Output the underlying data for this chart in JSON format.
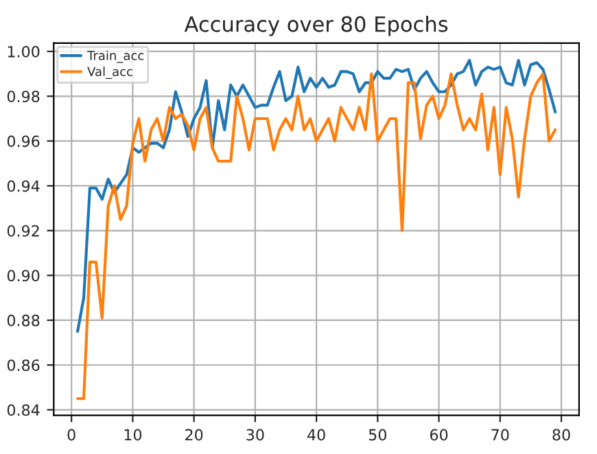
{
  "chart_data": {
    "type": "line",
    "title": "Accuracy over 80 Epochs",
    "x": [
      1,
      2,
      3,
      4,
      5,
      6,
      7,
      8,
      9,
      10,
      11,
      12,
      13,
      14,
      15,
      16,
      17,
      18,
      19,
      20,
      21,
      22,
      23,
      24,
      25,
      26,
      27,
      28,
      29,
      30,
      31,
      32,
      33,
      34,
      35,
      36,
      37,
      38,
      39,
      40,
      41,
      42,
      43,
      44,
      45,
      46,
      47,
      48,
      49,
      50,
      51,
      52,
      53,
      54,
      55,
      56,
      57,
      58,
      59,
      60,
      61,
      62,
      63,
      64,
      65,
      66,
      67,
      68,
      69,
      70,
      71,
      72,
      73,
      74,
      75,
      76,
      77,
      78,
      79
    ],
    "series": [
      {
        "name": "Train_acc",
        "color": "#1f77b4",
        "values": [
          0.875,
          0.89,
          0.939,
          0.939,
          0.934,
          0.943,
          0.937,
          0.941,
          0.945,
          0.957,
          0.955,
          0.957,
          0.959,
          0.959,
          0.957,
          0.965,
          0.982,
          0.973,
          0.962,
          0.97,
          0.975,
          0.987,
          0.957,
          0.978,
          0.965,
          0.985,
          0.98,
          0.985,
          0.98,
          0.975,
          0.976,
          0.976,
          0.984,
          0.991,
          0.978,
          0.98,
          0.993,
          0.982,
          0.988,
          0.984,
          0.988,
          0.984,
          0.985,
          0.991,
          0.991,
          0.99,
          0.982,
          0.986,
          0.986,
          0.991,
          0.988,
          0.988,
          0.992,
          0.991,
          0.992,
          0.983,
          0.988,
          0.991,
          0.986,
          0.982,
          0.982,
          0.985,
          0.99,
          0.991,
          0.996,
          0.985,
          0.991,
          0.993,
          0.992,
          0.993,
          0.986,
          0.985,
          0.996,
          0.985,
          0.994,
          0.995,
          0.992,
          0.983,
          0.973
        ]
      },
      {
        "name": "Val_acc",
        "color": "#ff7f0e",
        "values": [
          0.845,
          0.845,
          0.906,
          0.906,
          0.881,
          0.931,
          0.94,
          0.925,
          0.931,
          0.959,
          0.97,
          0.951,
          0.965,
          0.97,
          0.96,
          0.975,
          0.97,
          0.972,
          0.967,
          0.956,
          0.97,
          0.975,
          0.957,
          0.951,
          0.951,
          0.951,
          0.98,
          0.97,
          0.956,
          0.97,
          0.97,
          0.97,
          0.956,
          0.965,
          0.97,
          0.965,
          0.98,
          0.965,
          0.97,
          0.96,
          0.965,
          0.97,
          0.96,
          0.975,
          0.97,
          0.965,
          0.975,
          0.965,
          0.99,
          0.96,
          0.965,
          0.97,
          0.97,
          0.92,
          0.986,
          0.986,
          0.961,
          0.976,
          0.98,
          0.97,
          0.976,
          0.99,
          0.976,
          0.965,
          0.97,
          0.965,
          0.981,
          0.956,
          0.975,
          0.945,
          0.975,
          0.961,
          0.935,
          0.961,
          0.98,
          0.986,
          0.99,
          0.96,
          0.965
        ]
      }
    ],
    "xlim": [
      -2.9,
      82.9
    ],
    "ylim": [
      0.8375,
      1.0037
    ],
    "xticks": [
      0,
      10,
      20,
      30,
      40,
      50,
      60,
      70,
      80
    ],
    "yticks": [
      {
        "value": 0.84,
        "label": "0.84"
      },
      {
        "value": 0.86,
        "label": "0.86"
      },
      {
        "value": 0.88,
        "label": "0.88"
      },
      {
        "value": 0.9,
        "label": "0.90"
      },
      {
        "value": 0.92,
        "label": "0.92"
      },
      {
        "value": 0.94,
        "label": "0.94"
      },
      {
        "value": 0.96,
        "label": "0.96"
      },
      {
        "value": 0.98,
        "label": "0.98"
      },
      {
        "value": 1.0,
        "label": "1.00"
      }
    ],
    "grid": true,
    "legend": "top left"
  }
}
